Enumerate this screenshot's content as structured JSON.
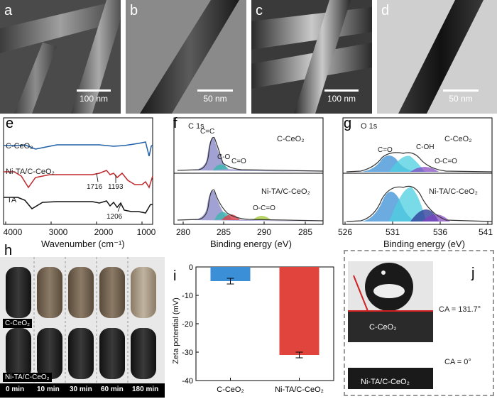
{
  "panels": {
    "a": {
      "label": "a",
      "scale": "100 nm"
    },
    "b": {
      "label": "b",
      "scale": "50 nm"
    },
    "c": {
      "label": "c",
      "scale": "100 nm"
    },
    "d": {
      "label": "d",
      "scale": "50 nm"
    },
    "e": {
      "label": "e",
      "xlabel": "Wavenumber  (cm⁻¹)",
      "xticks": [
        "4000",
        "3000",
        "2000",
        "1000"
      ],
      "series": [
        "C-CeO₂",
        "Ni-TA/C-CeO₂",
        "TA"
      ],
      "peaks": [
        "1716",
        "1193",
        "1206"
      ]
    },
    "f": {
      "label": "f",
      "title": "C 1s",
      "xlabel": "Binding energy (eV)",
      "xticks": [
        "280",
        "285",
        "290",
        "285"
      ],
      "top_sample": "C-CeO₂",
      "bottom_sample": "Ni-TA/C-CeO₂",
      "peak_cc": "C=C",
      "peak_co": "C-O",
      "peak_ceqo": "C=O",
      "peak_oco": "O-C=O"
    },
    "g": {
      "label": "g",
      "title": "O 1s",
      "xlabel": "Binding energy (eV)",
      "xticks": [
        "526",
        "531",
        "536",
        "541"
      ],
      "top_sample": "C-CeO₂",
      "bottom_sample": "Ni-TA/C-CeO₂",
      "peak_ceqo": "C=O",
      "peak_coh": "C-OH",
      "peak_oco": "O-C=O"
    },
    "h": {
      "label": "h",
      "row1": "C-CeO₂",
      "row2": "Ni-TA/C-CeO₂",
      "times": [
        "0 min",
        "10 min",
        "30 min",
        "60 min",
        "180 min"
      ]
    },
    "i": {
      "label": "i",
      "ylabel": "Zeta potential (mV)"
    },
    "j": {
      "label": "j",
      "top_sample": "C-CeO₂",
      "bottom_sample": "Ni-TA/C-CeO₂",
      "ca_top": "CA = 131.7°",
      "ca_bottom": "CA = 0°"
    }
  },
  "chart_data": {
    "type": "bar",
    "categories": [
      "C-CeO₂",
      "Ni-TA/C-CeO₂"
    ],
    "values": [
      -5,
      -31
    ],
    "errors": [
      1,
      1
    ],
    "ylabel": "Zeta potential (mV)",
    "ylim": [
      -40,
      0
    ],
    "yticks": [
      0,
      -10,
      -20,
      -30,
      -40
    ],
    "colors": [
      "#3a8fd6",
      "#e0443c"
    ]
  }
}
